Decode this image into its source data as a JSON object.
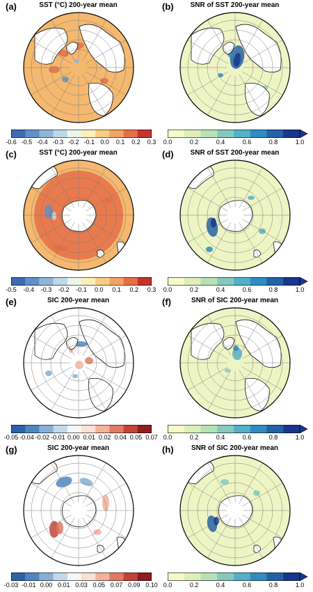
{
  "panels": [
    {
      "label": "(a)",
      "title": "SST (°C) 200-year mean",
      "hemisphere": "north",
      "ticks": [
        "-0.6",
        "-0.5",
        "-0.4",
        "-0.3",
        "-0.2",
        "-0.1",
        "0.0",
        "0.1",
        "0.2",
        "0.3"
      ],
      "colors": [
        "#3c6db3",
        "#5f91c6",
        "#8fb6d8",
        "#bfd8e8",
        "#eef5e8",
        "#fbeeb8",
        "#f8cc86",
        "#f2a463",
        "#e56f48",
        "#c4342d"
      ],
      "scale": "diverging"
    },
    {
      "label": "(b)",
      "title": "SNR of SST 200-year mean",
      "hemisphere": "north",
      "ticks": [
        "0.0",
        "0.2",
        "0.4",
        "0.6",
        "0.8",
        "1.0"
      ],
      "colors": [
        "#f5fac9",
        "#dcefb8",
        "#b6e1b7",
        "#85cabd",
        "#54b0c7",
        "#2f8bc0",
        "#2362a6",
        "#17368d"
      ],
      "scale": "sequential"
    },
    {
      "label": "(c)",
      "title": "SST (°C) 200-year mean",
      "hemisphere": "south",
      "ticks": [
        "-0.5",
        "-0.4",
        "-0.3",
        "-0.2",
        "-0.1",
        "0.0",
        "0.1",
        "0.2",
        "0.3"
      ],
      "colors": [
        "#3c6db3",
        "#5f91c6",
        "#8fb6d8",
        "#bfd8e8",
        "#eef5e8",
        "#fbeeb8",
        "#f8cc86",
        "#f2a463",
        "#e56f48",
        "#c4342d"
      ],
      "scale": "diverging"
    },
    {
      "label": "(d)",
      "title": "SNR of SST 200-year mean",
      "hemisphere": "south",
      "ticks": [
        "0.0",
        "0.2",
        "0.4",
        "0.6",
        "0.8",
        "1.0"
      ],
      "colors": [
        "#f5fac9",
        "#dcefb8",
        "#b6e1b7",
        "#85cabd",
        "#54b0c7",
        "#2f8bc0",
        "#2362a6",
        "#17368d"
      ],
      "scale": "sequential"
    },
    {
      "label": "(e)",
      "title": "SIC 200-year mean",
      "hemisphere": "north",
      "ticks": [
        "-0.05",
        "-0.04",
        "-0.02",
        "-0.01",
        "0.00",
        "0.01",
        "0.02",
        "0.04",
        "0.05",
        "0.07"
      ],
      "colors": [
        "#2c62a8",
        "#4f86bf",
        "#86b0d5",
        "#c3d9ea",
        "#f4f6f8",
        "#fbe0d3",
        "#f3b29a",
        "#e07b61",
        "#c44336",
        "#8f1d22"
      ],
      "scale": "diverging"
    },
    {
      "label": "(f)",
      "title": "SNR of SIC 200-year mean",
      "hemisphere": "north",
      "ticks": [
        "0.0",
        "0.2",
        "0.4",
        "0.6",
        "0.8",
        "1.0"
      ],
      "colors": [
        "#f5fac9",
        "#dcefb8",
        "#b6e1b7",
        "#85cabd",
        "#54b0c7",
        "#2f8bc0",
        "#2362a6",
        "#17368d"
      ],
      "scale": "sequential"
    },
    {
      "label": "(g)",
      "title": "SIC 200-year mean",
      "hemisphere": "south",
      "ticks": [
        "-0.03",
        "-0.01",
        "0.00",
        "0.01",
        "0.03",
        "0.05",
        "0.07",
        "0.09",
        "0.10"
      ],
      "colors": [
        "#2c62a8",
        "#4f86bf",
        "#86b0d5",
        "#c3d9ea",
        "#f4f6f8",
        "#fbe0d3",
        "#f3b29a",
        "#e07b61",
        "#c44336",
        "#8f1d22"
      ],
      "scale": "diverging"
    },
    {
      "label": "(h)",
      "title": "SNR of SIC 200-year mean",
      "hemisphere": "south",
      "ticks": [
        "0.0",
        "0.2",
        "0.4",
        "0.6",
        "0.8",
        "1.0"
      ],
      "colors": [
        "#f5fac9",
        "#dcefb8",
        "#b6e1b7",
        "#85cabd",
        "#54b0c7",
        "#2f8bc0",
        "#2362a6",
        "#17368d"
      ],
      "scale": "sequential"
    }
  ],
  "palette": {
    "sst_background": "#f4b86e",
    "sst_warm": "#ec9a57",
    "snr_background": "#eef5c4",
    "sic_background": "#ffffff",
    "land": "#ffffff",
    "coast": "#111111",
    "grid": "#7a7a7a"
  }
}
